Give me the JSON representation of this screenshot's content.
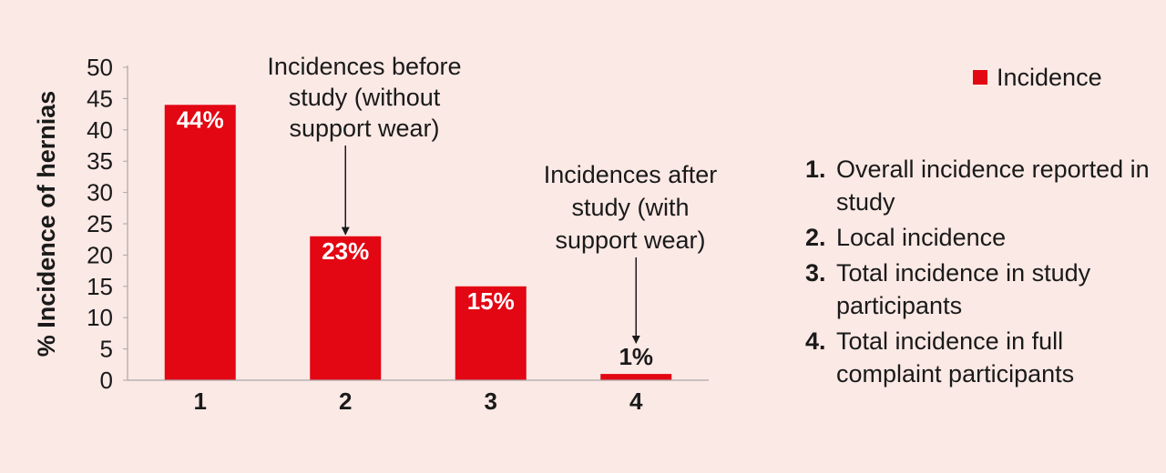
{
  "chart_data": {
    "type": "bar",
    "categories": [
      "1",
      "2",
      "3",
      "4"
    ],
    "series": [
      {
        "name": "Incidence",
        "values": [
          44,
          23,
          15,
          1
        ],
        "color": "#e30613"
      }
    ],
    "data_labels": [
      "44%",
      "23%",
      "15%",
      "1%"
    ],
    "ylabel": "% Incidence of hernias",
    "xlabel": "",
    "ylim": [
      0,
      50
    ],
    "yticks": [
      0,
      5,
      10,
      15,
      20,
      25,
      30,
      35,
      40,
      45,
      50
    ],
    "grid": false,
    "legend_placement": "top-right",
    "annotations": [
      {
        "lines": [
          "Incidences before",
          "study (without",
          "support wear)"
        ],
        "target_category": "2",
        "target_value": 23
      },
      {
        "lines": [
          "Incidences after",
          "study (with",
          "support wear)"
        ],
        "target_category": "4",
        "target_value": 1
      }
    ]
  },
  "notes": [
    {
      "num": "1.",
      "text": "Overall incidence reported in study"
    },
    {
      "num": "2.",
      "text": "Local incidence"
    },
    {
      "num": "3.",
      "text": "Total incidence in study participants"
    },
    {
      "num": "4.",
      "text": "Total incidence in full complaint participants"
    }
  ]
}
